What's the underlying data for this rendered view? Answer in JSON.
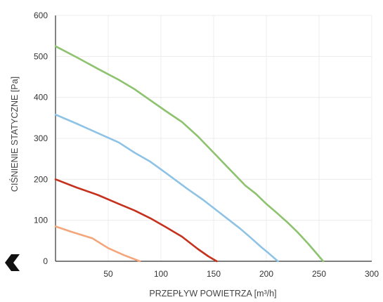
{
  "chart_data": {
    "type": "line",
    "title": "",
    "xlabel": "PRZEPŁYW POWIETRZA [m³/h]",
    "ylabel": "CIŚNIENIE STATYCZNE [Pa]",
    "xlim": [
      0,
      300
    ],
    "ylim": [
      0,
      600
    ],
    "xticks": [
      50,
      100,
      150,
      200,
      250,
      300
    ],
    "yticks": [
      0,
      100,
      200,
      300,
      400,
      500,
      600
    ],
    "grid": true,
    "series": [
      {
        "color": "#8dc26f",
        "x": [
          0,
          20,
          40,
          60,
          75,
          90,
          105,
          120,
          135,
          150,
          165,
          180,
          190,
          200,
          210,
          220,
          230,
          240,
          250,
          254
        ],
        "y": [
          525,
          498,
          470,
          443,
          420,
          393,
          366,
          340,
          305,
          265,
          225,
          185,
          165,
          140,
          118,
          95,
          70,
          42,
          12,
          0
        ]
      },
      {
        "color": "#8ec3e6",
        "x": [
          0,
          20,
          40,
          60,
          75,
          90,
          105,
          115,
          125,
          140,
          155,
          165,
          175,
          185,
          195,
          202,
          211
        ],
        "y": [
          358,
          336,
          313,
          290,
          265,
          243,
          215,
          196,
          177,
          150,
          120,
          100,
          80,
          58,
          35,
          20,
          0
        ]
      },
      {
        "color": "#c6311d",
        "x": [
          0,
          20,
          40,
          60,
          75,
          90,
          105,
          120,
          135,
          145,
          153
        ],
        "y": [
          200,
          180,
          162,
          140,
          124,
          105,
          83,
          60,
          30,
          12,
          0
        ]
      },
      {
        "color": "#f4a67a",
        "x": [
          0,
          15,
          35,
          50,
          65,
          80
        ],
        "y": [
          85,
          72,
          56,
          32,
          15,
          0
        ]
      }
    ]
  },
  "colors": {
    "grid": "#ececec",
    "axis": "#333333",
    "arrow": "#111111"
  },
  "nav": {
    "back_icon": "chevron-left-icon"
  }
}
